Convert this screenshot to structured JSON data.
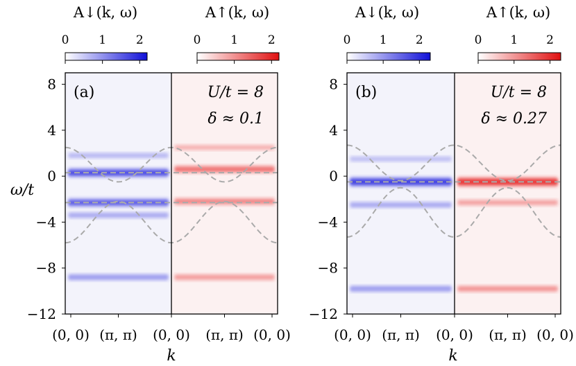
{
  "colorbars": [
    {
      "label": "A↓(k, ω)",
      "ticks": [
        "0",
        "1",
        "2"
      ],
      "vmin": 0,
      "vmax": 2.2,
      "color": "#1010d8"
    },
    {
      "label": "A↑(k, ω)",
      "ticks": [
        "0",
        "1",
        "2"
      ],
      "vmin": 0,
      "vmax": 2.2,
      "color": "#e01010"
    },
    {
      "label": "A↓(k, ω)",
      "ticks": [
        "0",
        "1",
        "2"
      ],
      "vmin": 0,
      "vmax": 2.3,
      "color": "#1010d8"
    },
    {
      "label": "A↑(k, ω)",
      "ticks": [
        "0",
        "1",
        "2"
      ],
      "vmin": 0,
      "vmax": 2.3,
      "color": "#e01010"
    }
  ],
  "chart_data": [
    {
      "type": "heatmap",
      "panel_label": "(a)",
      "annotation_line1": "U/t = 8",
      "annotation_line2": "δ ≈ 0.1",
      "ylabel": "ω/t",
      "xlabel": "k",
      "ylim": [
        -12,
        9
      ],
      "yticks": [
        "−12",
        "−8",
        "−4",
        "0",
        "4",
        "8"
      ],
      "ytick_values": [
        -12,
        -8,
        -4,
        0,
        4,
        8
      ],
      "xtick_labels": [
        "(0, 0)",
        "(π, π)",
        "(0, 0)",
        "(π, π)",
        "(0, 0)"
      ],
      "spin_down_bands": [
        {
          "omega": 0.3,
          "intensity": 0.9
        },
        {
          "omega": -2.3,
          "intensity": 0.8
        },
        {
          "omega": -3.4,
          "intensity": 0.3
        },
        {
          "omega": 1.8,
          "intensity": 0.2
        },
        {
          "omega": -8.8,
          "intensity": 0.4
        }
      ],
      "spin_up_bands": [
        {
          "omega": 0.6,
          "intensity": 0.6
        },
        {
          "omega": -2.2,
          "intensity": 0.5
        },
        {
          "omega": 2.5,
          "intensity": 0.2
        },
        {
          "omega": -8.8,
          "intensity": 0.35
        }
      ],
      "dashed_curves": {
        "flat_levels": [
          0.3,
          -2.3
        ],
        "upper_cosine": {
          "edge": 2.5,
          "center": -0.5
        },
        "lower_cosine": {
          "edge": -5.8,
          "center": -2.2
        }
      }
    },
    {
      "type": "heatmap",
      "panel_label": "(b)",
      "annotation_line1": "U/t = 8",
      "annotation_line2": "δ ≈ 0.27",
      "ylabel": "",
      "xlabel": "k",
      "ylim": [
        -12,
        9
      ],
      "yticks": [
        "−12",
        "−8",
        "−4",
        "0",
        "4",
        "8"
      ],
      "ytick_values": [
        -12,
        -8,
        -4,
        0,
        4,
        8
      ],
      "xtick_labels": [
        "(0, 0)",
        "(π, π)",
        "(0, 0)",
        "(π, π)",
        "(0, 0)"
      ],
      "spin_down_bands": [
        {
          "omega": -0.5,
          "intensity": 1.0
        },
        {
          "omega": -2.5,
          "intensity": 0.3
        },
        {
          "omega": 1.5,
          "intensity": 0.15
        },
        {
          "omega": -9.8,
          "intensity": 0.4
        }
      ],
      "spin_up_bands": [
        {
          "omega": -0.5,
          "intensity": 1.0
        },
        {
          "omega": -2.3,
          "intensity": 0.3
        },
        {
          "omega": -9.8,
          "intensity": 0.4
        }
      ],
      "dashed_curves": {
        "flat_levels": [
          -0.5
        ],
        "upper_cosine": {
          "edge": 2.7,
          "center": -0.4
        },
        "lower_cosine": {
          "edge": -5.3,
          "center": -1.0
        }
      }
    }
  ]
}
